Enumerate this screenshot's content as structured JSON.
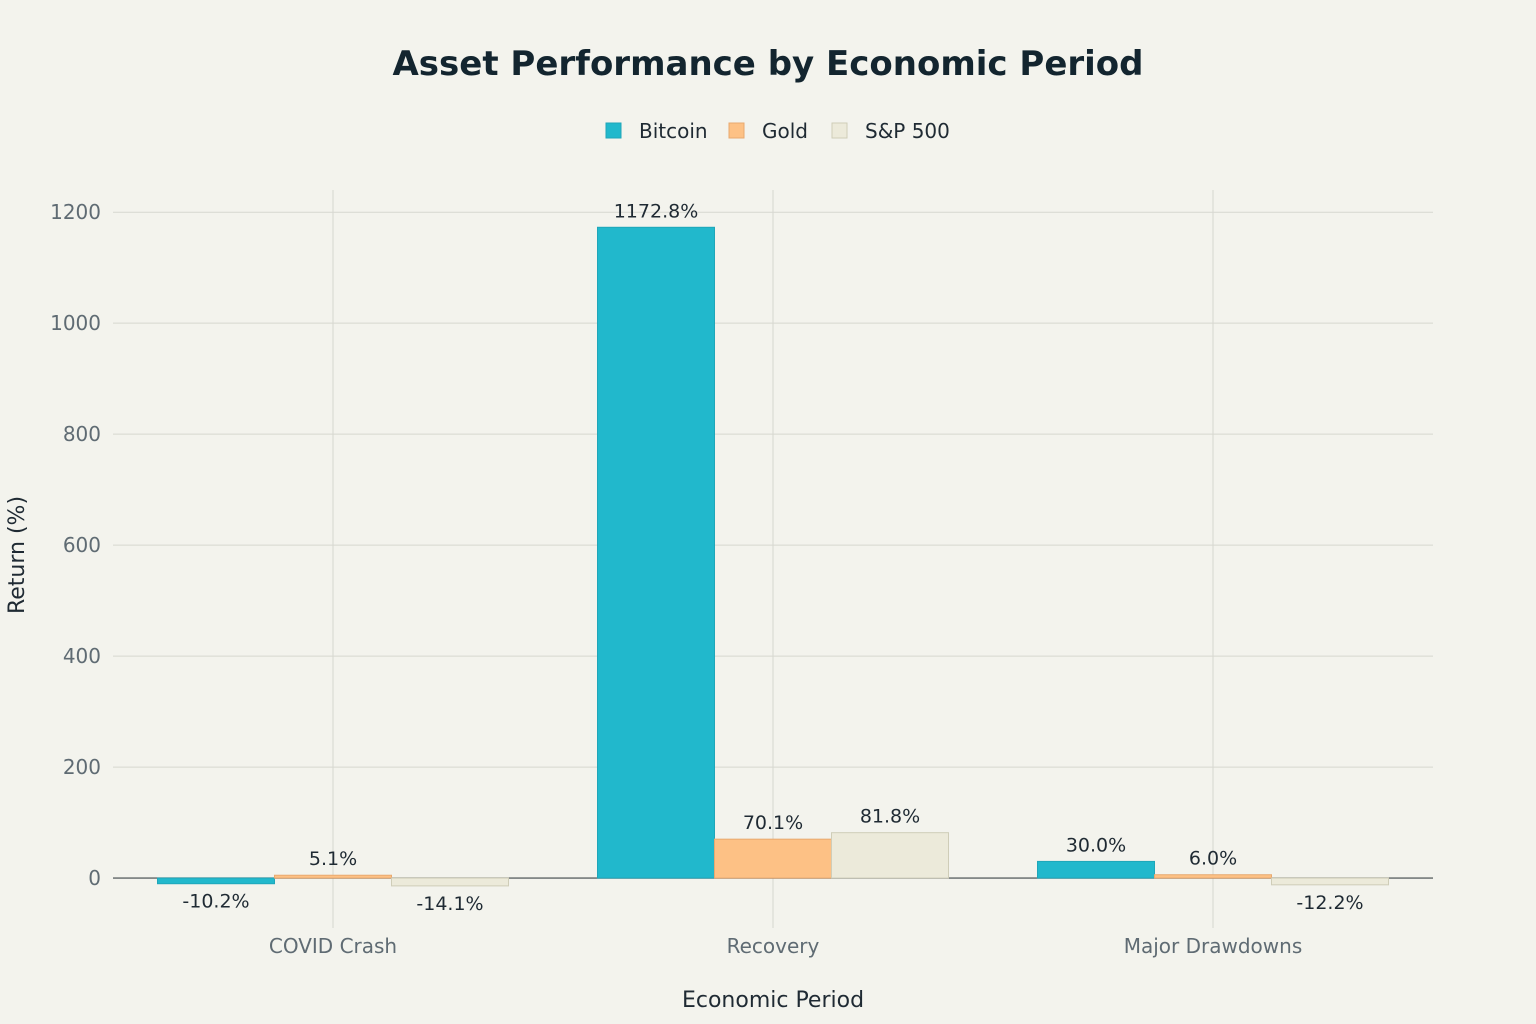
{
  "chart_data": {
    "type": "bar",
    "title": "Asset Performance by Economic Period",
    "xlabel": "Economic Period",
    "ylabel": "Return (%)",
    "categories": [
      "COVID Crash",
      "Recovery",
      "Major Drawdowns"
    ],
    "series": [
      {
        "name": "Bitcoin",
        "color": "#21b8cc",
        "border": "#1fa6b9",
        "values": [
          -10.2,
          1172.8,
          30.0
        ],
        "labels": [
          "-10.2%",
          "1172.8%",
          "30.0%"
        ]
      },
      {
        "name": "Gold",
        "color": "#fdc185",
        "border": "#e8a96f",
        "values": [
          5.1,
          70.1,
          6.0
        ],
        "labels": [
          "5.1%",
          "70.1%",
          "6.0%"
        ]
      },
      {
        "name": "S&P 500",
        "color": "#eceada",
        "border": "#cfcdb8",
        "values": [
          -14.1,
          81.8,
          -12.2
        ],
        "labels": [
          "-14.1%",
          "81.8%",
          "-12.2%"
        ]
      }
    ],
    "y_ticks": [
      0,
      200,
      400,
      600,
      800,
      1000,
      1200
    ],
    "y_tick_labels": [
      "0",
      "200",
      "400",
      "600",
      "800",
      "1000",
      "1200"
    ],
    "ylim": [
      -90,
      1240
    ],
    "grid": true,
    "legend_position": "top-center"
  }
}
